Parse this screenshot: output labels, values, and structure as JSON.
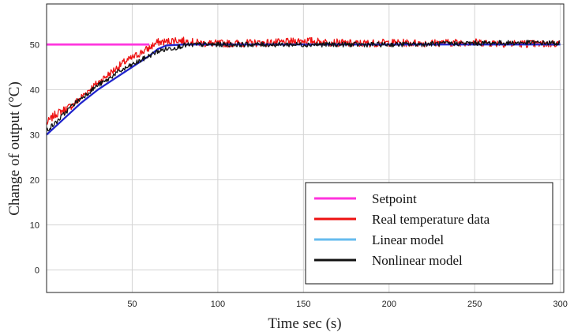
{
  "chart_data": {
    "type": "line",
    "title": "",
    "xlabel": "Time sec (s)",
    "ylabel": "Change of output (°C)",
    "xlim": [
      0,
      302
    ],
    "ylim": [
      -5,
      59
    ],
    "xticks": [
      50,
      100,
      150,
      200,
      250,
      300
    ],
    "yticks": [
      0,
      10,
      20,
      30,
      40,
      50
    ],
    "grid": true,
    "legend_position": "bottom-right",
    "series": [
      {
        "name": "Setpoint",
        "color": "#ff33dd",
        "x": [
          0,
          60
        ],
        "y": [
          50,
          50
        ]
      },
      {
        "name": "Real temperature data",
        "color": "#ee1111",
        "x": [
          0,
          5,
          10,
          15,
          20,
          25,
          30,
          35,
          40,
          45,
          50,
          55,
          60,
          62,
          65,
          70,
          75,
          80,
          90,
          100,
          120,
          140,
          150,
          160,
          180,
          200,
          220,
          250,
          270,
          290,
          300
        ],
        "y": [
          32.5,
          34.5,
          35.5,
          36.5,
          38.2,
          40,
          41.5,
          43,
          44.5,
          46,
          47,
          48.2,
          49.2,
          49.8,
          50.5,
          50.6,
          51,
          50.8,
          50.3,
          50.2,
          50.3,
          50.5,
          50.9,
          50.6,
          50.2,
          50.4,
          50.3,
          50.5,
          50.2,
          50.1,
          50.3
        ]
      },
      {
        "name": "Linear model",
        "color": "#66bbee",
        "x": [
          0,
          10,
          20,
          30,
          40,
          50,
          60,
          65,
          70,
          80,
          100,
          150,
          200,
          250,
          300
        ],
        "y": [
          30,
          33.5,
          37,
          40,
          42.5,
          45,
          47.5,
          49,
          49.8,
          50,
          50,
          50,
          50,
          50,
          50
        ]
      },
      {
        "name": "Nonlinear model",
        "color": "#111111",
        "x": [
          0,
          5,
          10,
          15,
          20,
          25,
          30,
          35,
          40,
          45,
          50,
          55,
          60,
          65,
          70,
          75,
          80,
          90,
          100,
          150,
          200,
          250,
          280,
          300
        ],
        "y": [
          31,
          32.5,
          34.5,
          36.5,
          38,
          39.5,
          41,
          42,
          43.5,
          44.5,
          45.5,
          46.5,
          47.5,
          48.5,
          49,
          49.3,
          49.8,
          50,
          50,
          50,
          50,
          50.3,
          50.4,
          50.3
        ]
      },
      {
        "name": "",
        "color": "#2222cc",
        "x": [
          0,
          10,
          20,
          30,
          40,
          50,
          60,
          65,
          70,
          80,
          100,
          150,
          200,
          250,
          300
        ],
        "y": [
          30,
          33.5,
          37,
          40,
          42.5,
          45,
          47.5,
          49,
          49.8,
          50,
          50,
          50,
          50,
          50,
          50
        ]
      }
    ]
  }
}
